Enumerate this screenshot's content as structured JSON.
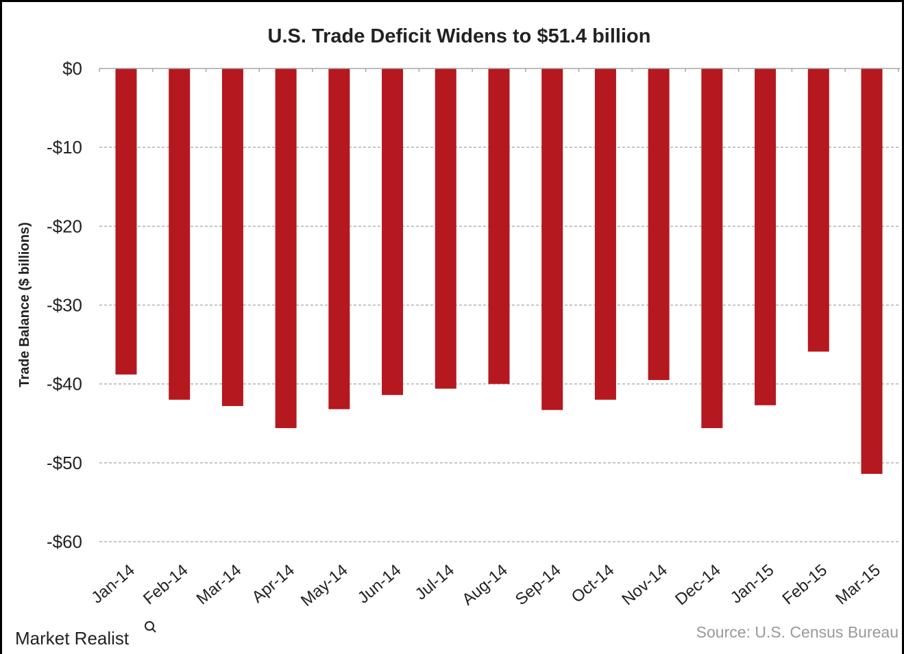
{
  "chart_data": {
    "type": "bar",
    "title": "U.S. Trade Deficit Widens to $51.4 billion",
    "xlabel": "",
    "ylabel": "Trade Balance ($ billions)",
    "ylim": [
      -60,
      0
    ],
    "yticks": [
      0,
      -10,
      -20,
      -30,
      -40,
      -50,
      -60
    ],
    "ytick_labels": [
      "$0",
      "-$10",
      "-$20",
      "-$30",
      "-$40",
      "-$50",
      "-$60"
    ],
    "categories": [
      "Jan-14",
      "Feb-14",
      "Mar-14",
      "Apr-14",
      "May-14",
      "Jun-14",
      "Jul-14",
      "Aug-14",
      "Sep-14",
      "Oct-14",
      "Nov-14",
      "Dec-14",
      "Jan-15",
      "Feb-15",
      "Mar-15"
    ],
    "values": [
      -38.8,
      -42.0,
      -42.8,
      -45.6,
      -43.2,
      -41.4,
      -40.6,
      -40.0,
      -43.3,
      -42.0,
      -39.5,
      -45.6,
      -42.7,
      -35.9,
      -51.4
    ],
    "grid": true,
    "bar_color": "#b5181f"
  },
  "branding": {
    "logo_text": "Market Realist",
    "source_text": "Source: U.S. Census Bureau"
  }
}
